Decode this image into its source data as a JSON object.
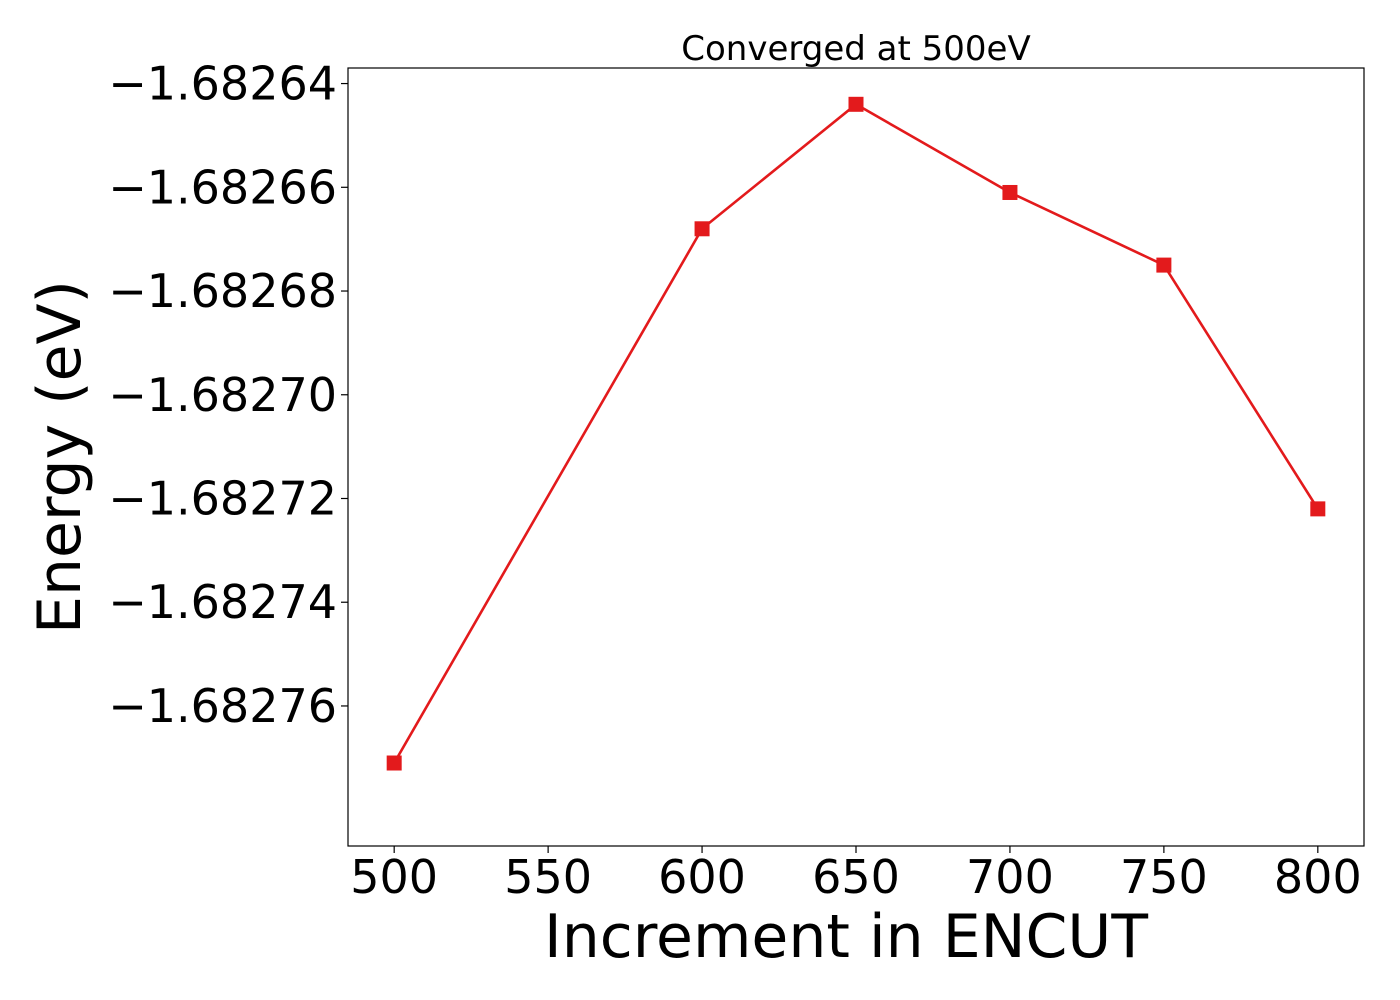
{
  "chart_data": {
    "type": "line",
    "title": "Converged at 500eV",
    "xlabel": "Increment in ENCUT",
    "ylabel": "Energy (eV)",
    "x": [
      500,
      600,
      650,
      700,
      750,
      800
    ],
    "series": [
      {
        "values": [
          -1.682771,
          -1.682668,
          -1.682644,
          -1.682661,
          -1.682675,
          -1.682722
        ],
        "color": "#e31a1c",
        "marker": "square"
      }
    ],
    "xticks": [
      500,
      550,
      600,
      650,
      700,
      750,
      800
    ],
    "xtick_labels": [
      "500",
      "550",
      "600",
      "650",
      "700",
      "750",
      "800"
    ],
    "yticks": [
      -1.68264,
      -1.68266,
      -1.68268,
      -1.6827,
      -1.68272,
      -1.68274,
      -1.68276
    ],
    "ytick_labels": [
      "−1.68264",
      "−1.68266",
      "−1.68268",
      "−1.68270",
      "−1.68272",
      "−1.68274",
      "−1.68276"
    ],
    "xlim": [
      485,
      815
    ],
    "ylim": [
      -1.682787,
      -1.682637
    ],
    "grid": false,
    "legend": "none"
  }
}
